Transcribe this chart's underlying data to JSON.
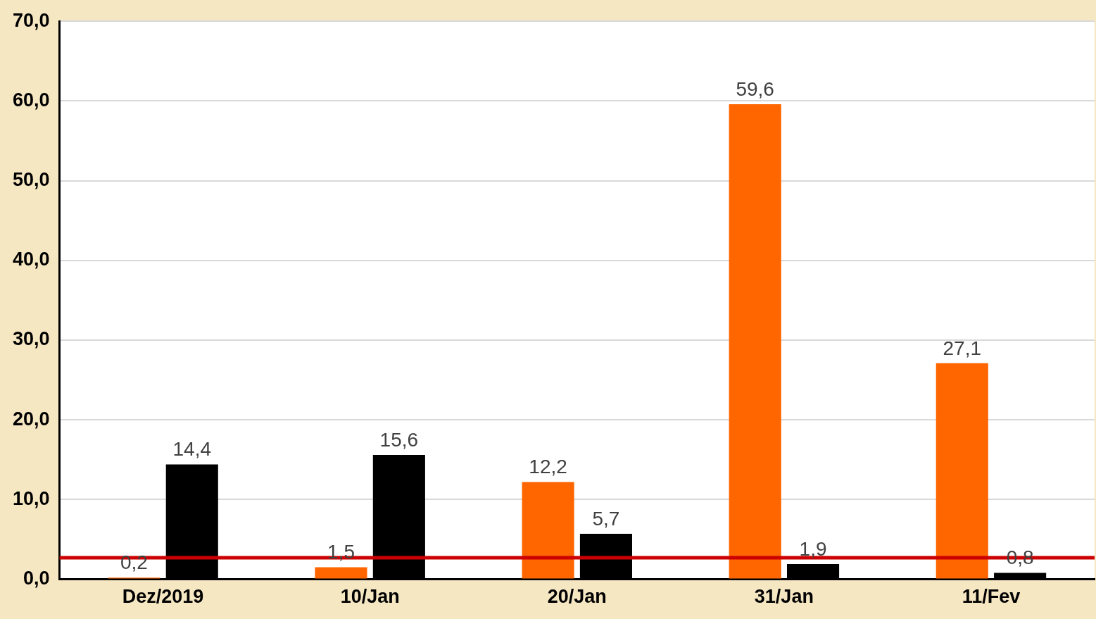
{
  "chart_data": {
    "type": "bar",
    "categories": [
      "Dez/2019",
      "10/Jan",
      "20/Jan",
      "31/Jan",
      "11/Fev"
    ],
    "series": [
      {
        "color": "#ff6600",
        "values": [
          0.2,
          1.5,
          12.2,
          59.6,
          27.1
        ],
        "value_labels": [
          "0,2",
          "1,5",
          "12,2",
          "59,6",
          "27,1"
        ]
      },
      {
        "color": "#000000",
        "values": [
          14.4,
          15.6,
          5.7,
          1.9,
          0.8
        ],
        "value_labels": [
          "14,4",
          "15,6",
          "5,7",
          "1,9",
          "0,8"
        ]
      }
    ],
    "ylim": [
      0,
      70
    ],
    "yticks": [
      {
        "value": 0,
        "label": "0,0"
      },
      {
        "value": 10,
        "label": "10,0"
      },
      {
        "value": 20,
        "label": "20,0"
      },
      {
        "value": 30,
        "label": "30,0"
      },
      {
        "value": 40,
        "label": "40,0"
      },
      {
        "value": 50,
        "label": "50,0"
      },
      {
        "value": 60,
        "label": "60,0"
      },
      {
        "value": 70,
        "label": "70,0"
      }
    ],
    "grid": "y",
    "legend": false,
    "ref_lines": [
      {
        "axis": "y",
        "value": 2.7,
        "color": "#cc0000"
      }
    ]
  }
}
